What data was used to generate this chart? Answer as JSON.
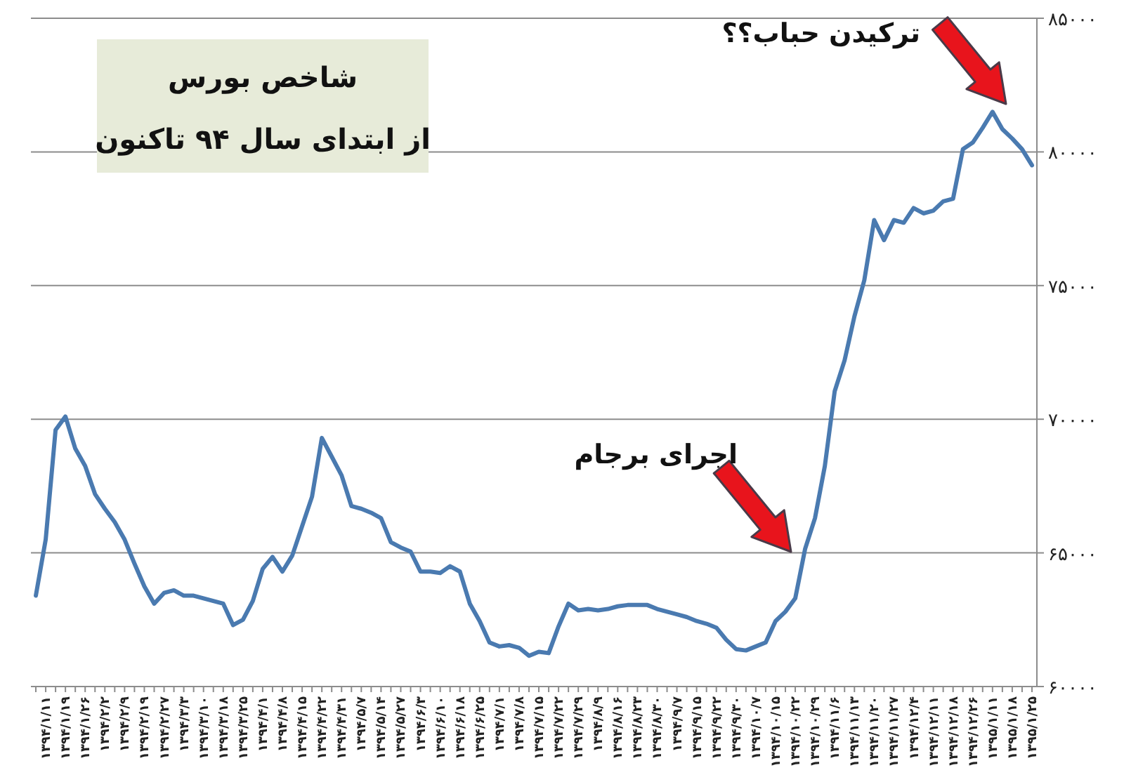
{
  "chart_data": {
    "type": "line",
    "title": "شاخص بورس",
    "subtitle": "از ابتدای سال ۹۴ تاکنون",
    "categories": [
      null,
      "۱۳۹۴/۱/۱۱",
      null,
      "۱۳۹۴/۱/۱۹",
      null,
      "۱۳۹۴/۱/۲۶",
      null,
      "۱۳۹۴/۲/۲",
      null,
      "۱۳۹۴/۲/۹",
      null,
      "۱۳۹۴/۲/۱۹",
      null,
      "۱۳۹۴/۲/۲۷",
      null,
      "۱۳۹۴/۳/۳",
      null,
      "۱۳۹۴/۳/۱۰",
      null,
      "۱۳۹۴/۳/۱۸",
      null,
      "۱۳۹۴/۳/۲۵",
      null,
      "۱۳۹۴/۴/۱",
      null,
      "۱۳۹۴/۴/۸",
      null,
      "۱۳۹۴/۴/۱۵",
      null,
      "۱۳۹۴/۴/۲۲",
      null,
      "۱۳۹۴/۴/۳۱",
      null,
      "۱۳۹۴/۵/۷",
      null,
      "۱۳۹۴/۵/۱۴",
      null,
      "۱۳۹۴/۵/۲۷",
      null,
      "۱۳۹۴/۶/۳",
      null,
      "۱۳۹۴/۶/۱۰",
      null,
      "۱۳۹۴/۶/۱۸",
      null,
      "۱۳۹۴/۶/۲۵",
      null,
      "۱۳۹۴/۷/۱",
      null,
      "۱۳۹۴/۷/۸",
      null,
      "۱۳۹۴/۷/۱۵",
      null,
      "۱۳۹۴/۷/۲۲",
      null,
      "۱۳۹۴/۷/۲۹",
      null,
      "۱۳۹۴/۸/۹",
      null,
      "۱۳۹۴/۸/۱۶",
      null,
      "۱۳۹۴/۸/۲۳",
      null,
      "۱۳۹۴/۸/۳۰",
      null,
      "۱۳۹۴/۹/۷",
      null,
      "۱۳۹۴/۹/۱۵",
      null,
      "۱۳۹۴/۹/۲۲",
      null,
      "۱۳۹۴/۹/۳۰",
      null,
      "۱۳۹۴/۱۰/۷",
      null,
      "۱۳۹۴/۱۰/۱۵",
      null,
      "۱۳۹۴/۱۰/۲۲",
      null,
      "۱۳۹۴/۱۰/۲۹",
      null,
      "۱۳۹۴/۱۱/۶",
      null,
      "۱۳۹۴/۱۱/۱۳",
      null,
      "۱۳۹۴/۱۱/۲۰",
      null,
      "۱۳۹۴/۱۱/۲۷",
      null,
      "۱۳۹۴/۱۲/۴",
      null,
      "۱۳۹۴/۱۲/۱۱",
      null,
      "۱۳۹۴/۱۲/۱۸",
      null,
      "۱۳۹۴/۱۲/۲۶",
      null,
      "۱۳۹۵/۱/۱۱",
      null,
      "۱۳۹۵/۱/۱۸",
      null,
      "۱۳۹۵/۱/۲۵"
    ],
    "series": [
      {
        "color": "#4a7ab0",
        "values": [
          63400,
          65500,
          69600,
          70100,
          68900,
          68250,
          67200,
          66650,
          66150,
          65500,
          64600,
          63750,
          63100,
          63500,
          63600,
          63400,
          63400,
          63300,
          63200,
          63100,
          62300,
          62500,
          63200,
          64400,
          64850,
          64300,
          64900,
          66000,
          67100,
          69300,
          68600,
          67900,
          66750,
          66650,
          66500,
          66300,
          65400,
          65200,
          65050,
          64300,
          64300,
          64250,
          64500,
          64300,
          63100,
          62450,
          61650,
          61500,
          61550,
          61450,
          61150,
          61300,
          61250,
          62250,
          63100,
          62850,
          62900,
          62850,
          62900,
          63000,
          63050,
          63050,
          63050,
          62900,
          62800,
          62700,
          62600,
          62450,
          62350,
          62200,
          61750,
          61400,
          61350,
          61500,
          61650,
          62450,
          62800,
          63300,
          65150,
          66300,
          68250,
          71050,
          72200,
          73850,
          75200,
          77450,
          76700,
          77450,
          77350,
          77900,
          77700,
          77800,
          78150,
          78250,
          80100,
          80350,
          80900,
          81500,
          80850,
          80500,
          80100,
          79500
        ]
      }
    ],
    "ylim": [
      60000,
      85000
    ],
    "yticks": [
      {
        "value": 60000,
        "label": "۶۰۰۰۰"
      },
      {
        "value": 65000,
        "label": "۶۵۰۰۰"
      },
      {
        "value": 70000,
        "label": "۷۰۰۰۰"
      },
      {
        "value": 75000,
        "label": "۷۵۰۰۰"
      },
      {
        "value": 80000,
        "label": "۸۰۰۰۰"
      },
      {
        "value": 85000,
        "label": "۸۵۰۰۰"
      }
    ],
    "grid": "y",
    "annotations": [
      "اجرای برجام",
      "ترکیدن حباب؟؟"
    ]
  }
}
